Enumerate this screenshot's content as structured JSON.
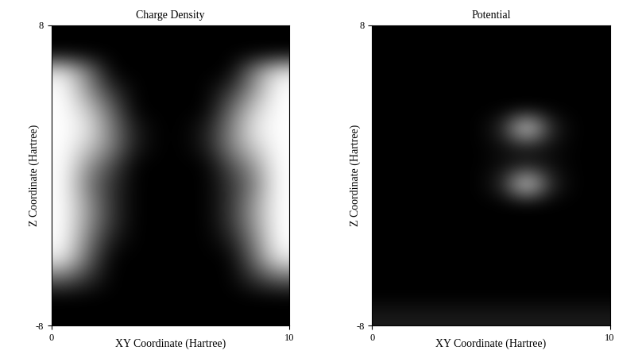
{
  "chart_data": [
    {
      "type": "heatmap",
      "title": "Charge Density",
      "x_label": "XY Coordinate (Hartree)",
      "y_label": "Z Coordinate (Hartree)",
      "xlim": [
        0,
        10
      ],
      "ylim": [
        -8,
        8
      ],
      "xticks": [
        0,
        10
      ],
      "yticks": [
        -8,
        8
      ],
      "color": "gray",
      "cells": [
        [
          0,
          0,
          0,
          0,
          0,
          0,
          0,
          0,
          0,
          0
        ],
        [
          0,
          0,
          0,
          0,
          0,
          0,
          0,
          0,
          0,
          0
        ],
        [
          0.9,
          0.5,
          0,
          0,
          0,
          0,
          0,
          0,
          0.5,
          0.9
        ],
        [
          1,
          0.6,
          0.2,
          0,
          0,
          0,
          0,
          0.2,
          0.6,
          1
        ],
        [
          1,
          0.8,
          0.4,
          0,
          0,
          0,
          0,
          0.4,
          0.8,
          1
        ],
        [
          1,
          0.9,
          0.5,
          0.1,
          0,
          0,
          0.1,
          0.5,
          0.9,
          1
        ],
        [
          1,
          0.8,
          0.5,
          0.1,
          0,
          0,
          0.1,
          0.5,
          0.8,
          1
        ],
        [
          1,
          0.6,
          0.3,
          0,
          0,
          0,
          0,
          0.3,
          0.6,
          1
        ],
        [
          1,
          0.5,
          0.2,
          0,
          0,
          0,
          0,
          0.2,
          0.5,
          1
        ],
        [
          1,
          0.6,
          0.2,
          0,
          0,
          0,
          0,
          0.2,
          0.6,
          1
        ],
        [
          1,
          0.6,
          0.2,
          0,
          0,
          0,
          0,
          0.2,
          0.6,
          1
        ],
        [
          1,
          0.5,
          0.1,
          0,
          0,
          0,
          0,
          0.1,
          0.5,
          1
        ],
        [
          0.9,
          0.4,
          0,
          0,
          0,
          0,
          0,
          0,
          0.4,
          0.9
        ],
        [
          0.4,
          0.2,
          0,
          0,
          0,
          0,
          0,
          0,
          0.2,
          0.4
        ],
        [
          0,
          0,
          0,
          0,
          0,
          0,
          0,
          0,
          0,
          0
        ],
        [
          0,
          0,
          0,
          0,
          0,
          0,
          0,
          0,
          0,
          0
        ]
      ]
    },
    {
      "type": "heatmap",
      "title": "Potential",
      "x_label": "XY Coordinate (Hartree)",
      "y_label": "Z Coordinate (Hartree)",
      "xlim": [
        0,
        10
      ],
      "ylim": [
        -8,
        8
      ],
      "xticks": [
        0,
        10
      ],
      "yticks": [
        -8,
        8
      ],
      "color": "gray",
      "cells": [
        [
          0,
          0,
          0,
          0,
          0,
          0,
          0,
          0,
          0,
          0
        ],
        [
          0,
          0,
          0,
          0,
          0,
          0,
          0,
          0,
          0,
          0
        ],
        [
          0,
          0,
          0,
          0,
          0,
          0,
          0,
          0,
          0,
          0
        ],
        [
          0,
          0,
          0,
          0,
          0,
          0,
          0,
          0,
          0,
          0
        ],
        [
          0,
          0,
          0,
          0,
          0,
          0,
          0,
          0,
          0,
          0
        ],
        [
          0,
          0,
          0,
          0,
          0,
          0.15,
          1,
          0.15,
          0,
          0
        ],
        [
          0,
          0,
          0,
          0,
          0,
          0.05,
          0.1,
          0.05,
          0,
          0
        ],
        [
          0,
          0,
          0,
          0,
          0,
          0.05,
          0.1,
          0.05,
          0,
          0
        ],
        [
          0,
          0,
          0,
          0,
          0,
          0.15,
          1,
          0.15,
          0,
          0
        ],
        [
          0,
          0,
          0,
          0,
          0,
          0,
          0,
          0,
          0,
          0
        ],
        [
          0,
          0,
          0,
          0,
          0,
          0,
          0,
          0,
          0,
          0
        ],
        [
          0,
          0,
          0,
          0,
          0,
          0,
          0,
          0,
          0,
          0
        ],
        [
          0,
          0,
          0,
          0,
          0,
          0,
          0,
          0,
          0,
          0
        ],
        [
          0,
          0,
          0,
          0,
          0,
          0,
          0,
          0,
          0,
          0
        ],
        [
          0,
          0,
          0,
          0,
          0,
          0,
          0,
          0,
          0,
          0
        ],
        [
          0.1,
          0.1,
          0.1,
          0.1,
          0.1,
          0.1,
          0.1,
          0.1,
          0.1,
          0.1
        ]
      ]
    }
  ]
}
